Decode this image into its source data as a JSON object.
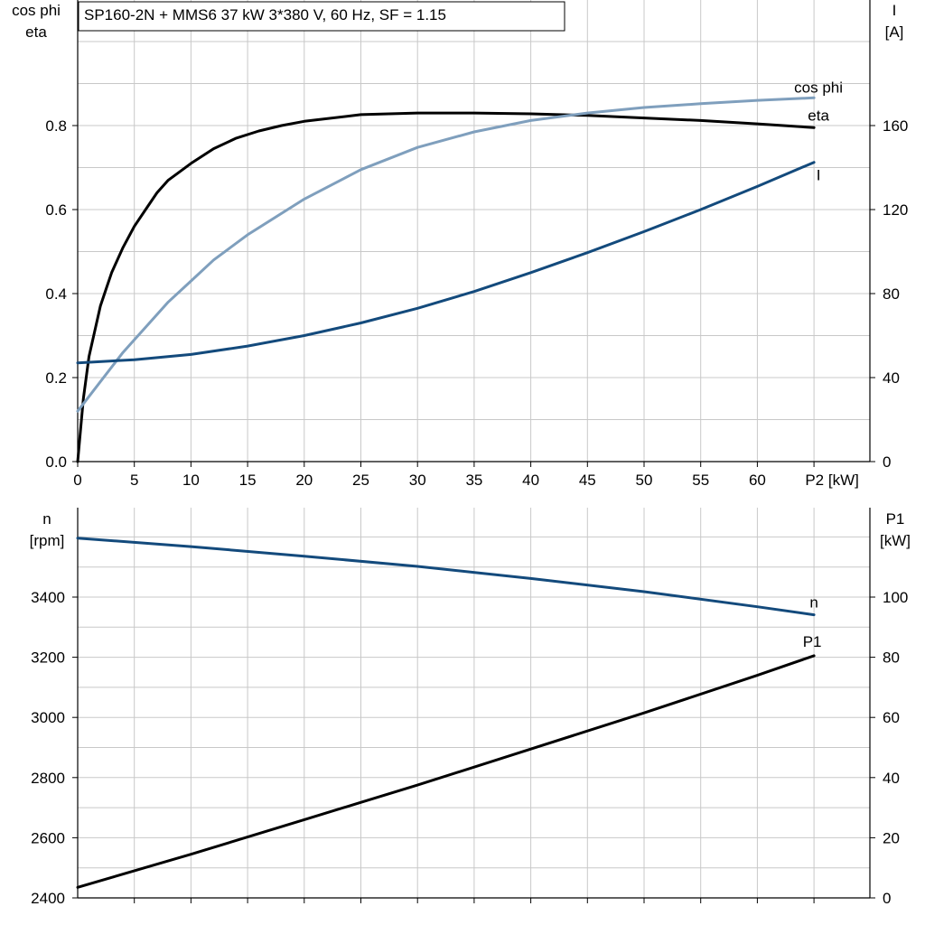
{
  "header": {
    "title": "SP160-2N + MMS6   37 kW   3*380 V, 60 Hz, SF = 1.15"
  },
  "colors": {
    "eta": "#000000",
    "cos_phi": "#7f9fbd",
    "I": "#134a7c",
    "n": "#134a7c",
    "P1": "#000000",
    "grid": "#c8c8c8"
  },
  "chart_data": [
    {
      "type": "line",
      "grid": true,
      "xlabel": "P2 [kW]",
      "x_ticks": [
        "0",
        "5",
        "10",
        "15",
        "20",
        "25",
        "30",
        "35",
        "40",
        "45",
        "50",
        "55",
        "60"
      ],
      "xlim": [
        0,
        70
      ],
      "ylabel_left": [
        "cos phi",
        "eta"
      ],
      "ylim_left": [
        0,
        1.07
      ],
      "y_ticks_left": [
        "0.0",
        "0.2",
        "0.4",
        "0.6",
        "0.8"
      ],
      "ylabel_right": [
        "I",
        "[A]"
      ],
      "ylim_right": [
        0,
        214
      ],
      "y_ticks_right": [
        "0",
        "40",
        "80",
        "120",
        "160"
      ],
      "series": [
        {
          "name": "eta",
          "axis": "left",
          "x": [
            0,
            0.5,
            1,
            2,
            2.5,
            3,
            4,
            5,
            6,
            7,
            8,
            9,
            10,
            12,
            14,
            16,
            18,
            20,
            25,
            30,
            35,
            40,
            45,
            50,
            55,
            60,
            65
          ],
          "y": [
            0.0,
            0.15,
            0.25,
            0.37,
            0.41,
            0.45,
            0.51,
            0.56,
            0.6,
            0.64,
            0.67,
            0.69,
            0.71,
            0.745,
            0.77,
            0.787,
            0.8,
            0.81,
            0.826,
            0.83,
            0.83,
            0.828,
            0.824,
            0.818,
            0.812,
            0.804,
            0.795
          ]
        },
        {
          "name": "cos phi",
          "axis": "left",
          "x": [
            0,
            2,
            4,
            6,
            8,
            10,
            12,
            15,
            20,
            25,
            30,
            35,
            40,
            45,
            50,
            55,
            60,
            65
          ],
          "y": [
            0.12,
            0.19,
            0.26,
            0.32,
            0.38,
            0.43,
            0.48,
            0.54,
            0.625,
            0.695,
            0.748,
            0.785,
            0.812,
            0.83,
            0.843,
            0.852,
            0.86,
            0.866
          ]
        },
        {
          "name": "I",
          "axis": "right",
          "x": [
            0,
            5,
            10,
            15,
            20,
            25,
            30,
            35,
            40,
            45,
            50,
            55,
            60,
            65
          ],
          "y": [
            47,
            48.5,
            51,
            55,
            60,
            66,
            73,
            81,
            90,
            99.5,
            109.5,
            120,
            131,
            142.5
          ]
        }
      ]
    },
    {
      "type": "line",
      "grid": true,
      "xlim": [
        0,
        70
      ],
      "ylabel_left": [
        "n",
        "[rpm]"
      ],
      "ylim_left": [
        2400,
        3700
      ],
      "y_ticks_left": [
        "2400",
        "2600",
        "2800",
        "3000",
        "3200",
        "3400"
      ],
      "ylabel_right": [
        "P1",
        "[kW]"
      ],
      "ylim_right": [
        0,
        130
      ],
      "y_ticks_right": [
        "0",
        "20",
        "40",
        "60",
        "80",
        "100"
      ],
      "series": [
        {
          "name": "n",
          "axis": "left",
          "x": [
            0,
            10,
            20,
            30,
            40,
            50,
            60,
            65
          ],
          "y": [
            3596,
            3568,
            3536,
            3502,
            3462,
            3418,
            3368,
            3341
          ]
        },
        {
          "name": "P1",
          "axis": "right",
          "x": [
            0,
            10,
            20,
            30,
            40,
            50,
            60,
            65
          ],
          "y": [
            3.5,
            14.5,
            26,
            37.5,
            49.5,
            61.5,
            74,
            80.5
          ]
        }
      ]
    }
  ]
}
